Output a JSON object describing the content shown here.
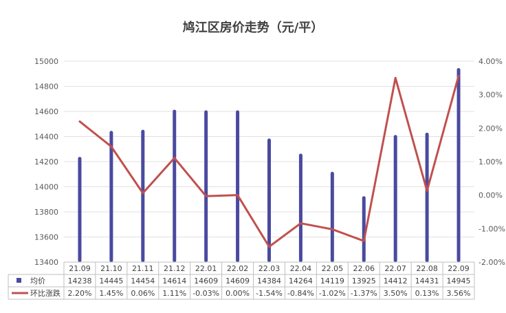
{
  "chart_data": {
    "type": "bar+line",
    "title": "鸠江区房价走势（元/平）",
    "categories": [
      "21.09",
      "21.10",
      "21.11",
      "21.12",
      "22.01",
      "22.02",
      "22.03",
      "22.04",
      "22.05",
      "22.06",
      "22.07",
      "22.08",
      "22.09"
    ],
    "series": [
      {
        "name": "均价",
        "type": "bar",
        "axis": "left",
        "color": "#4a4aa0",
        "values": [
          14238,
          14445,
          14454,
          14614,
          14609,
          14609,
          14384,
          14264,
          14119,
          13925,
          14412,
          14431,
          14945
        ]
      },
      {
        "name": "环比涨跌",
        "type": "line",
        "axis": "right",
        "color": "#c0504d",
        "values": [
          2.2,
          1.45,
          0.06,
          1.11,
          -0.03,
          0.0,
          -1.54,
          -0.84,
          -1.02,
          -1.37,
          3.5,
          0.13,
          3.56
        ],
        "labels": [
          "2.20%",
          "1.45%",
          "0.06%",
          "1.11%",
          "-0.03%",
          "0.00%",
          "-1.54%",
          "-0.84%",
          "-1.02%",
          "-1.37%",
          "3.50%",
          "0.13%",
          "3.56%"
        ]
      }
    ],
    "y_left": {
      "ylim": [
        13400,
        15000
      ],
      "ticks": [
        "13400",
        "13600",
        "13800",
        "14000",
        "14200",
        "14400",
        "14600",
        "14800",
        "15000"
      ]
    },
    "y_right": {
      "ylim": [
        -2,
        4
      ],
      "ticks": [
        "-2.00%",
        "-1.00%",
        "0.00%",
        "1.00%",
        "2.00%",
        "3.00%",
        "4.00%"
      ]
    },
    "grid": true,
    "legend": "data-table-below"
  }
}
